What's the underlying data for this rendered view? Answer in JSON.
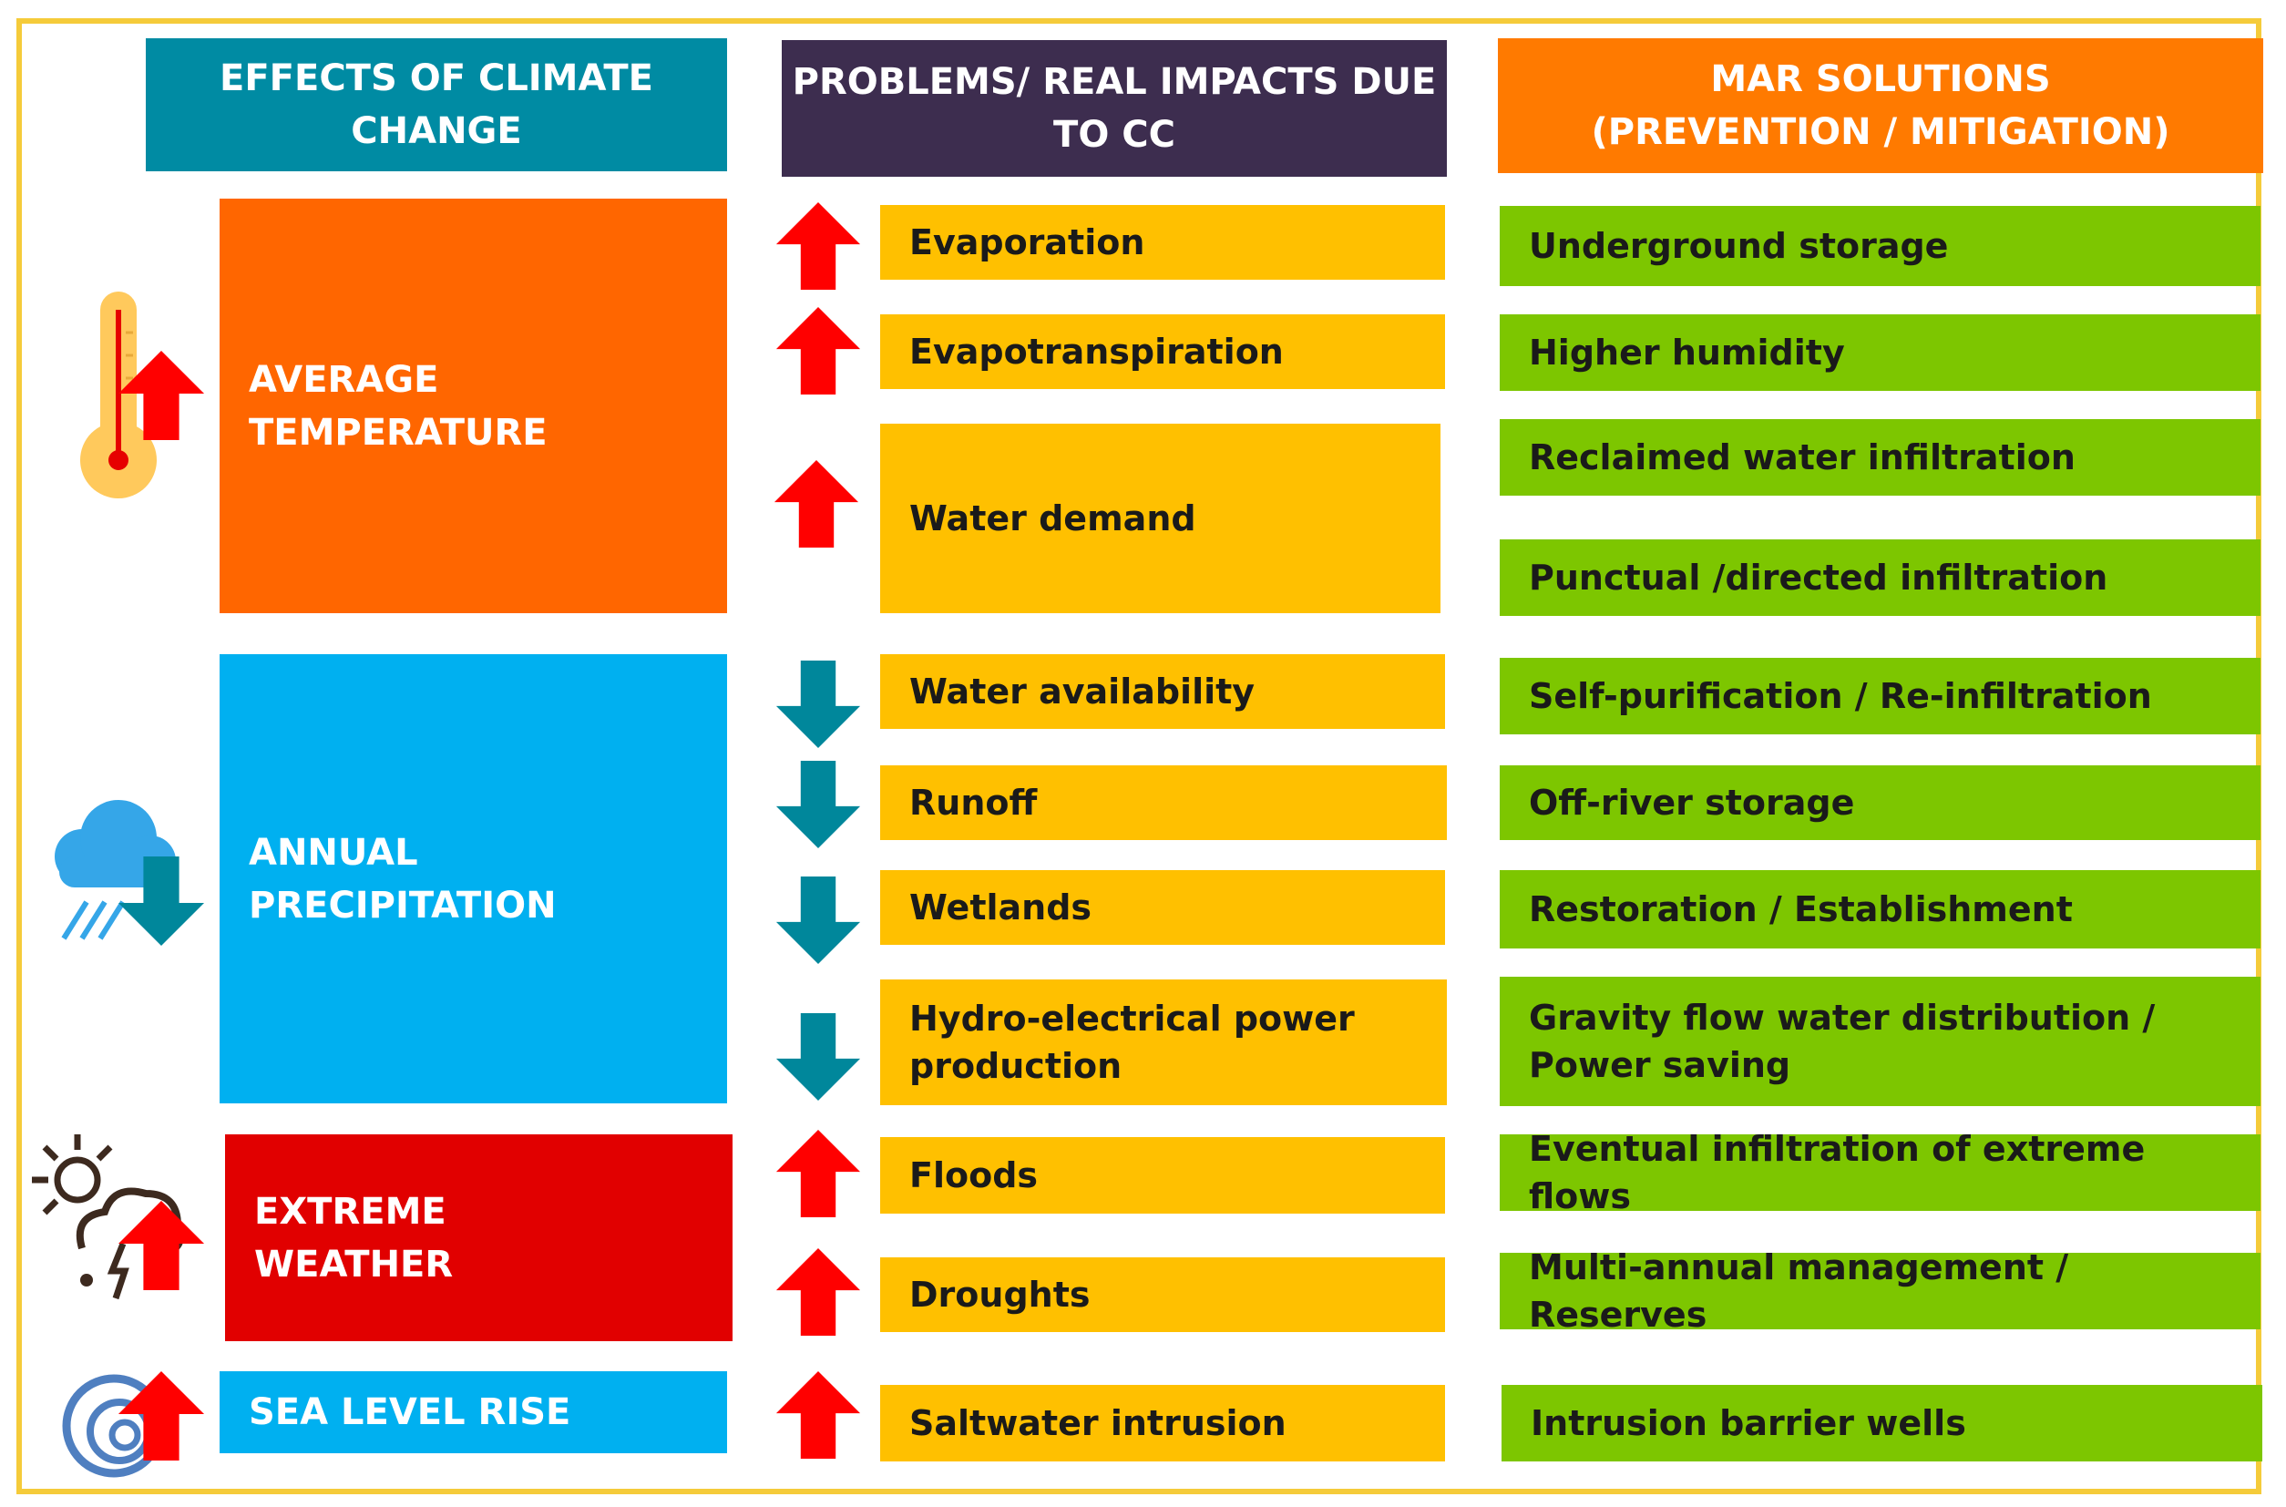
{
  "headers": {
    "effects": "EFFECTS OF CLIMATE\nCHANGE",
    "impacts": "PROBLEMS/ REAL IMPACTS DUE\nTO CC",
    "solutions": "MAR SOLUTIONS\n(PREVENTION / MITIGATION)"
  },
  "effects": [
    {
      "label": "AVERAGE\nTEMPERATURE",
      "trend": "up",
      "icon": "thermometer-icon"
    },
    {
      "label": "ANNUAL PRECIPITATION",
      "trend": "down",
      "icon": "rain-cloud-icon"
    },
    {
      "label": "EXTREME\nWEATHER",
      "trend": "up",
      "icon": "storm-icon"
    },
    {
      "label": "SEA LEVEL RISE",
      "trend": "up",
      "icon": "wave-icon"
    }
  ],
  "impacts": [
    {
      "label": "Evaporation",
      "trend": "up"
    },
    {
      "label": "Evapotranspiration",
      "trend": "up"
    },
    {
      "label": "Water demand",
      "trend": "up"
    },
    {
      "label": "Water availability",
      "trend": "down"
    },
    {
      "label": "Runoff",
      "trend": "down"
    },
    {
      "label": "Wetlands",
      "trend": "down"
    },
    {
      "label": "Hydro-electrical power production",
      "trend": "down"
    },
    {
      "label": "Floods",
      "trend": "up"
    },
    {
      "label": "Droughts",
      "trend": "up"
    },
    {
      "label": "Saltwater intrusion",
      "trend": "up"
    }
  ],
  "solutions": [
    "Underground storage",
    "Higher humidity",
    "Reclaimed water infiltration",
    "Punctual /directed infiltration",
    "Self-purification / Re-infiltration",
    "Off-river storage",
    "Restoration / Establishment",
    "Gravity flow water distribution / Power saving",
    "Eventual infiltration of extreme flows",
    "Multi-annual management / Reserves",
    "Intrusion barrier wells"
  ],
  "colors": {
    "effects_header": "#008ba3",
    "impacts_header": "#3d2d4f",
    "solutions_header": "#ff7a00",
    "temperature": "#ff6600",
    "precipitation": "#00b0f0",
    "extreme_weather": "#e10000",
    "sea_level": "#00b0f0",
    "impact_box": "#ffc000",
    "solution_box": "#7dc600",
    "arrow_up": "#ff0000",
    "arrow_down": "#00879b",
    "frame": "#f5cb3a"
  }
}
